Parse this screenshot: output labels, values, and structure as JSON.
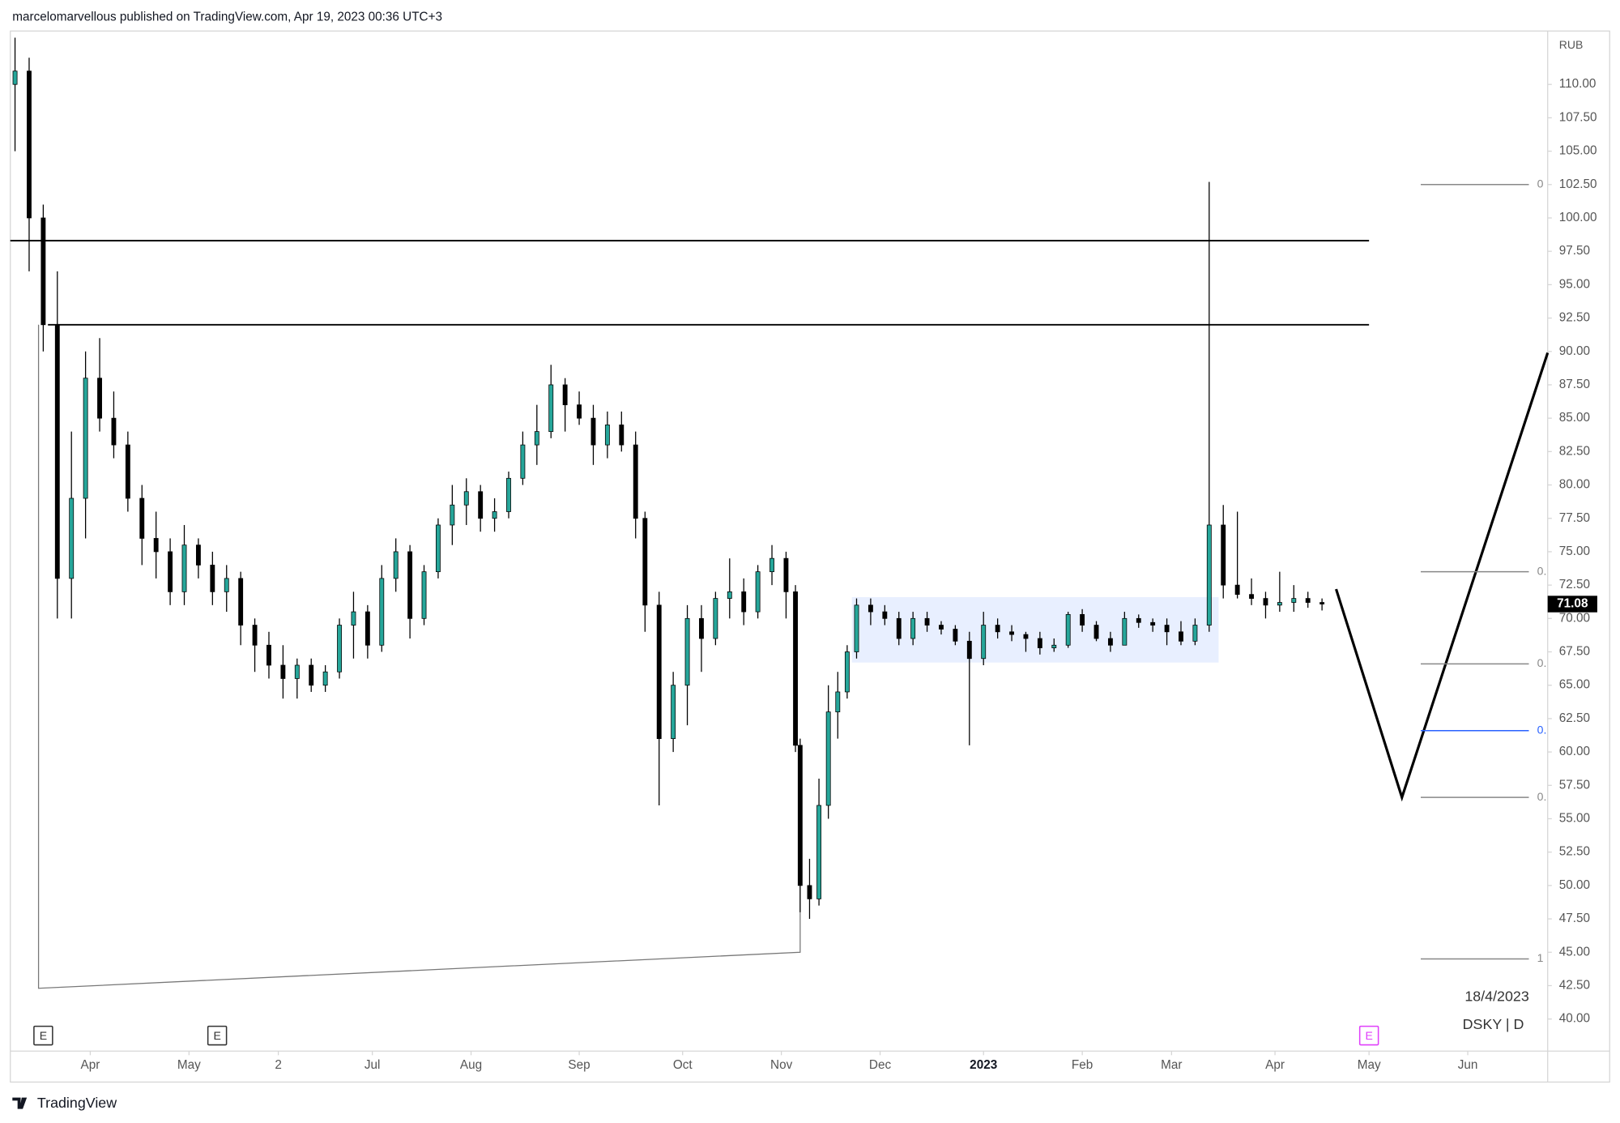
{
  "header": "marcelomarvellous published on TradingView.com, Apr 19, 2023 00:36 UTC+3",
  "brand": "TradingView",
  "chart_data": {
    "type": "candlestick",
    "currency": "RUB",
    "watermark_date": "18/4/2023",
    "watermark_symbol": "DSKY | D",
    "last_price": 71.08,
    "up_color": "#26a69a",
    "down_color": "#000000",
    "xlim": [
      -1,
      326
    ],
    "ylim": [
      37.6,
      114.0
    ],
    "xticks": [
      {
        "value": 16,
        "label": "Apr"
      },
      {
        "value": 37,
        "label": "May"
      },
      {
        "value": 56,
        "label": "2"
      },
      {
        "value": 76,
        "label": "Jul"
      },
      {
        "value": 97,
        "label": "Aug"
      },
      {
        "value": 120,
        "label": "Sep"
      },
      {
        "value": 142,
        "label": "Oct"
      },
      {
        "value": 163,
        "label": "Nov"
      },
      {
        "value": 184,
        "label": "Dec"
      },
      {
        "value": 206,
        "label": "2023"
      },
      {
        "value": 227,
        "label": "Feb"
      },
      {
        "value": 246,
        "label": "Mar"
      },
      {
        "value": 268,
        "label": "Apr"
      },
      {
        "value": 288,
        "label": "May"
      },
      {
        "value": 309,
        "label": "Jun"
      }
    ],
    "yticks": [
      {
        "value": 40,
        "label": "40.00"
      },
      {
        "value": 42.5,
        "label": "42.50"
      },
      {
        "value": 45,
        "label": "45.00"
      },
      {
        "value": 47.5,
        "label": "47.50"
      },
      {
        "value": 50,
        "label": "50.00"
      },
      {
        "value": 52.5,
        "label": "52.50"
      },
      {
        "value": 55,
        "label": "55.00"
      },
      {
        "value": 57.5,
        "label": "57.50"
      },
      {
        "value": 60,
        "label": "60.00"
      },
      {
        "value": 62.5,
        "label": "62.50"
      },
      {
        "value": 65,
        "label": "65.00"
      },
      {
        "value": 67.5,
        "label": "67.50"
      },
      {
        "value": 70,
        "label": "70.00"
      },
      {
        "value": 72.5,
        "label": "72.50"
      },
      {
        "value": 75,
        "label": "75.00"
      },
      {
        "value": 77.5,
        "label": "77.50"
      },
      {
        "value": 80,
        "label": "80.00"
      },
      {
        "value": 82.5,
        "label": "82.50"
      },
      {
        "value": 85,
        "label": "85.00"
      },
      {
        "value": 87.5,
        "label": "87.50"
      },
      {
        "value": 90,
        "label": "90.00"
      },
      {
        "value": 92.5,
        "label": "92.50"
      },
      {
        "value": 95,
        "label": "95.00"
      },
      {
        "value": 97.5,
        "label": "97.50"
      },
      {
        "value": 100,
        "label": "100.00"
      },
      {
        "value": 102.5,
        "label": "102.50"
      },
      {
        "value": 105,
        "label": "105.00"
      },
      {
        "value": 107.5,
        "label": "107.50"
      },
      {
        "value": 110,
        "label": "110.00"
      }
    ],
    "x": [
      0,
      3,
      6,
      9,
      12,
      15,
      18,
      21,
      24,
      27,
      30,
      33,
      36,
      39,
      42,
      45,
      48,
      51,
      54,
      57,
      60,
      63,
      66,
      69,
      72,
      75,
      78,
      81,
      84,
      87,
      90,
      93,
      96,
      99,
      102,
      105,
      108,
      111,
      114,
      117,
      120,
      123,
      126,
      129,
      132,
      134,
      137,
      140,
      143,
      146,
      149,
      152,
      155,
      158,
      161,
      164,
      166,
      167,
      169,
      171,
      173,
      175,
      177,
      179,
      182,
      185,
      188,
      191,
      194,
      197,
      200,
      203,
      206,
      209,
      212,
      215,
      218,
      221,
      224,
      227,
      230,
      233,
      236,
      239,
      242,
      245,
      248,
      251,
      254,
      257,
      260,
      263,
      266,
      269,
      272,
      275,
      278
    ],
    "open": [
      110,
      111,
      100,
      92,
      73,
      79,
      88,
      85,
      83,
      79,
      76,
      75,
      72,
      75.5,
      74,
      72,
      73,
      69.5,
      68,
      66.5,
      65.5,
      66.5,
      65,
      66,
      69.5,
      70.5,
      68,
      73,
      75,
      70,
      73.5,
      77,
      78.5,
      79.5,
      77.5,
      78,
      80.5,
      83,
      84,
      87.5,
      86,
      85,
      83,
      84.5,
      83,
      77.5,
      71,
      61,
      65,
      70,
      68.5,
      71.5,
      72,
      70.5,
      73.5,
      74.5,
      72,
      60.5,
      50,
      49,
      56,
      63,
      64.5,
      67.5,
      71,
      70.5,
      70,
      68.5,
      70,
      69.5,
      69.2,
      68.3,
      67,
      69.5,
      69,
      68.8,
      68.5,
      67.8,
      68,
      70.3,
      69.5,
      68.5,
      68,
      70,
      69.7,
      69.5,
      69,
      68.3,
      69.5,
      77,
      72.5,
      71.8,
      71.5,
      71,
      71.2,
      71.5,
      71.2
    ],
    "high": [
      113.5,
      112,
      101,
      96,
      84,
      90,
      91,
      87,
      84,
      80,
      78,
      76,
      77,
      76,
      75,
      74,
      73.5,
      70,
      69,
      68,
      67,
      67,
      66.5,
      70,
      72,
      71,
      74,
      76,
      75.5,
      74,
      77.5,
      80,
      80.5,
      80,
      79,
      81,
      84,
      86,
      89,
      88,
      87,
      86,
      85.5,
      85.5,
      84,
      78,
      72,
      66,
      71,
      71,
      72,
      74.5,
      73,
      74,
      75.5,
      75,
      72.5,
      61,
      52,
      58,
      65,
      66,
      68,
      71.5,
      71.5,
      71,
      70.5,
      70.5,
      70.5,
      69.8,
      69.5,
      69,
      70.5,
      70,
      69.5,
      69,
      69,
      68.5,
      70.5,
      70.7,
      69.8,
      69,
      70.5,
      70.3,
      70,
      70,
      69.8,
      70,
      102.7,
      78.5,
      78,
      73,
      72,
      73.5,
      72.5,
      72,
      71.5
    ],
    "low": [
      105,
      96,
      90,
      70,
      70,
      76,
      84,
      82,
      78,
      74,
      73,
      71,
      71,
      73,
      71,
      70.5,
      68,
      66,
      65.5,
      64,
      64,
      64.5,
      64.5,
      65.5,
      67,
      67,
      67.5,
      72,
      68.5,
      69.5,
      73,
      75.5,
      77,
      76.5,
      76.5,
      77.5,
      80,
      81.5,
      83.5,
      84,
      84.5,
      81.5,
      82,
      82.5,
      76,
      69,
      56,
      60,
      62,
      66,
      68,
      70,
      69.5,
      70,
      72.5,
      70,
      60,
      48,
      47.5,
      48.5,
      55,
      61,
      64,
      67,
      69.5,
      69.5,
      68,
      68,
      69,
      68.8,
      68,
      60.5,
      66.5,
      68.5,
      68.3,
      67.5,
      67.3,
      67.5,
      67.8,
      69,
      68.3,
      67.5,
      68,
      69.3,
      69,
      68,
      68,
      68,
      69,
      71.5,
      71.5,
      71,
      70,
      70.5,
      70.5,
      70.8,
      70.6
    ],
    "close": [
      111,
      100,
      92,
      73,
      79,
      88,
      85,
      83,
      79,
      76,
      75,
      72,
      75.5,
      74,
      72,
      73,
      69.5,
      68,
      66.5,
      65.5,
      66.5,
      65,
      66,
      69.5,
      70.5,
      68,
      73,
      75,
      70,
      73.5,
      77,
      78.5,
      79.5,
      77.5,
      78,
      80.5,
      83,
      84,
      87.5,
      86,
      85,
      83,
      84.5,
      83,
      77.5,
      71,
      61,
      65,
      70,
      68.5,
      71.5,
      72,
      70.5,
      73.5,
      74.5,
      72,
      60.5,
      50,
      49,
      56,
      63,
      64.5,
      67.5,
      71,
      70.5,
      70,
      68.5,
      70,
      69.5,
      69.2,
      68.3,
      67,
      69.5,
      69,
      68.8,
      68.5,
      67.8,
      68,
      70.3,
      69.5,
      68.5,
      68,
      70,
      69.7,
      69.5,
      69,
      68.3,
      69.5,
      77,
      72.5,
      71.8,
      71.5,
      71,
      71.2,
      71.5,
      71.2,
      71.08
    ],
    "hlines": [
      {
        "value": 98.3,
        "x": [
          -1,
          288
        ]
      },
      {
        "value": 92.0,
        "x": [
          7,
          288
        ]
      }
    ],
    "box": {
      "x": [
        178,
        256
      ],
      "y": [
        66.7,
        71.6
      ],
      "color": "#e8efff"
    },
    "projection": {
      "x": [
        281,
        295,
        326
      ],
      "y": [
        72.2,
        56.6,
        89.9
      ]
    },
    "trend": {
      "x": [
        5,
        5,
        167,
        167
      ],
      "y": [
        92,
        42.3,
        45,
        60
      ]
    },
    "fib": {
      "x": [
        299,
        322
      ],
      "levels": [
        {
          "value": 102.5,
          "label": "0",
          "color": "#888888"
        },
        {
          "value": 73.5,
          "label": "0.",
          "color": "#888888"
        },
        {
          "value": 66.6,
          "label": "0.",
          "color": "#888888"
        },
        {
          "value": 61.6,
          "label": "0.",
          "color": "#2962ff"
        },
        {
          "value": 56.6,
          "label": "0.",
          "color": "#888888"
        },
        {
          "value": 44.5,
          "label": "1",
          "color": "#888888"
        }
      ]
    },
    "events": [
      {
        "x": 6,
        "label": "E",
        "color": "#333333"
      },
      {
        "x": 43,
        "label": "E",
        "color": "#333333"
      },
      {
        "x": 288,
        "label": "E",
        "color": "#e040fb"
      }
    ]
  }
}
